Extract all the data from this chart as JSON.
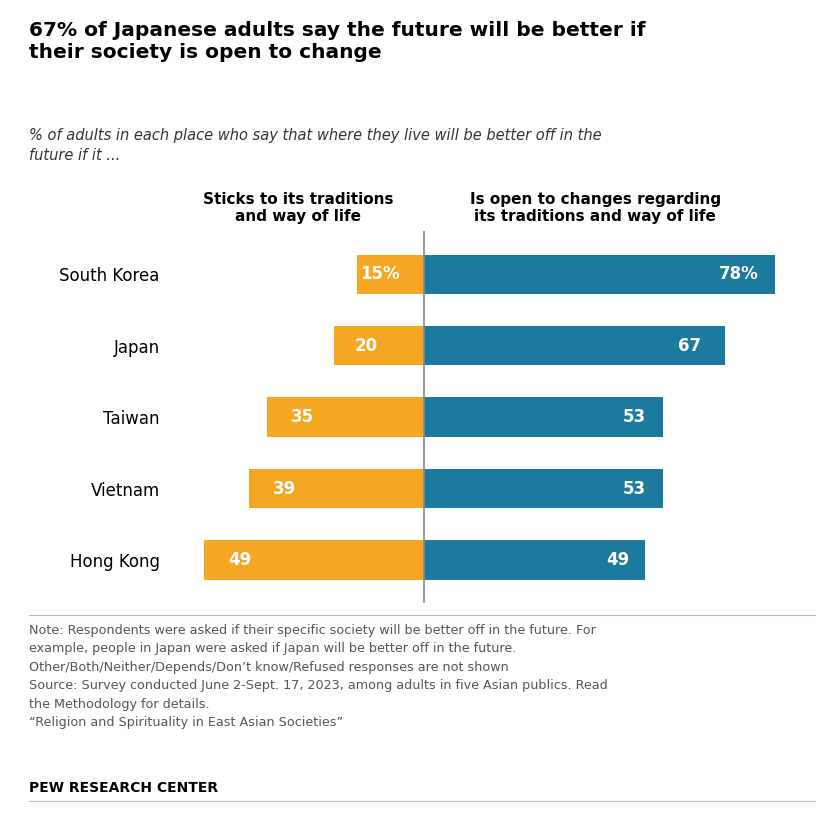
{
  "title": "67% of Japanese adults say the future will be better if\ntheir society is open to change",
  "subtitle": "% of adults in each place who say that where they live will be better off in the\nfuture if it ...",
  "categories": [
    "South Korea",
    "Japan",
    "Taiwan",
    "Vietnam",
    "Hong Kong"
  ],
  "traditions_values": [
    15,
    20,
    35,
    39,
    49
  ],
  "open_values": [
    78,
    67,
    53,
    53,
    49
  ],
  "traditions_color": "#F5A623",
  "open_color": "#1B7A9E",
  "traditions_label": "Sticks to its traditions\nand way of life",
  "open_label": "Is open to changes regarding\nits traditions and way of life",
  "note_text": "Note: Respondents were asked if their specific society will be better off in the future. For\nexample, people in Japan were asked if Japan will be better off in the future.\nOther/Both/Neither/Depends/Don’t know/Refused responses are not shown\nSource: Survey conducted June 2-Sept. 17, 2023, among adults in five Asian publics. Read\nthe Methodology for details.\n“Religion and Spirituality in East Asian Societies”",
  "source_label": "PEW RESEARCH CENTER",
  "bar_height": 0.55,
  "background_color": "#FFFFFF",
  "scale": 5.5
}
